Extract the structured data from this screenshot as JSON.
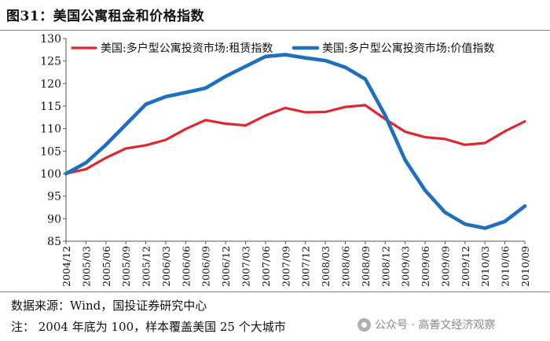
{
  "title": "图31：美国公寓租金和价格指数",
  "footer": {
    "source": "数据来源：Wind，国投证券研究中心",
    "note": "注： 2004 年底为 100，样本覆盖美国 25 个大城市",
    "watermark": "公众号 · 高善文经济观察"
  },
  "chart_data": {
    "type": "line",
    "title": "",
    "xlabel": "",
    "ylabel": "",
    "ylim": [
      85,
      130
    ],
    "yticks": [
      "85",
      "90",
      "95",
      "100",
      "105",
      "110",
      "115",
      "120",
      "125",
      "130"
    ],
    "xticks": [
      "2004/12",
      "2005/03",
      "2005/06",
      "2005/09",
      "2005/12",
      "2006/03",
      "2006/06",
      "2006/09",
      "2006/12",
      "2007/03",
      "2007/06",
      "2007/09",
      "2007/12",
      "2008/03",
      "2008/06",
      "2008/09",
      "2008/12",
      "2009/03",
      "2009/06",
      "2009/09",
      "2009/12",
      "2010/03",
      "2010/06",
      "2010/09"
    ],
    "legend_position": "top",
    "series": [
      {
        "name": "美国:多户型公寓投资市场:租赁指数",
        "color": "#e0262e",
        "values": [
          100.0,
          101.0,
          103.5,
          105.6,
          106.3,
          107.5,
          109.9,
          111.9,
          111.1,
          110.7,
          112.9,
          114.6,
          113.6,
          113.7,
          114.8,
          115.2,
          112.1,
          109.3,
          108.1,
          107.7,
          106.4,
          106.8,
          109.4,
          111.6
        ]
      },
      {
        "name": "美国:多户型公寓投资市场:价值指数",
        "color": "#1f6fbf",
        "values": [
          100.0,
          102.4,
          106.4,
          110.9,
          115.4,
          117.1,
          118.0,
          119.0,
          121.6,
          123.8,
          126.0,
          126.4,
          125.7,
          125.1,
          123.6,
          121.0,
          112.9,
          103.0,
          96.3,
          91.4,
          88.8,
          87.9,
          89.4,
          92.8
        ]
      }
    ]
  }
}
